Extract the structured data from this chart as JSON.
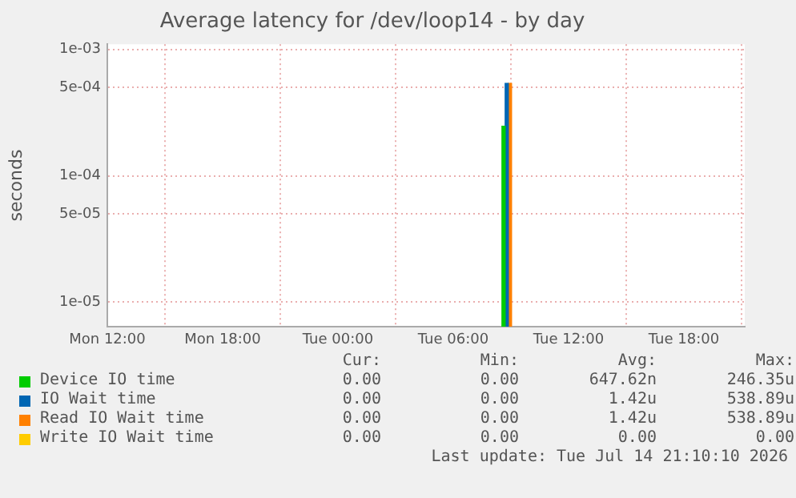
{
  "chart_data": {
    "type": "bar",
    "title": "Average latency for /dev/loop14 - by day",
    "ylabel": "seconds",
    "log": "y",
    "grid": true,
    "legend": "bottom",
    "xlim": [
      "2026-07-13T12:00",
      "2026-07-14T21:10"
    ],
    "xticks": [
      {
        "value": "2026-07-13T12:00",
        "label": "Mon 12:00"
      },
      {
        "value": "2026-07-13T18:00",
        "label": "Mon 18:00"
      },
      {
        "value": "2026-07-14T00:00",
        "label": "Tue 00:00"
      },
      {
        "value": "2026-07-14T06:00",
        "label": "Tue 06:00"
      },
      {
        "value": "2026-07-14T12:00",
        "label": "Tue 12:00"
      },
      {
        "value": "2026-07-14T18:00",
        "label": "Tue 18:00"
      }
    ],
    "ylim": [
      6.4e-06,
      0.0011
    ],
    "yticks": [
      {
        "value": 1e-05,
        "label": "1e-05"
      },
      {
        "value": 5e-05,
        "label": "5e-05"
      },
      {
        "value": 0.0001,
        "label": "1e-04"
      },
      {
        "value": 0.0005,
        "label": "5e-04"
      },
      {
        "value": 0.001,
        "label": "1e-03"
      }
    ],
    "series": [
      {
        "name": "Device IO time",
        "color": "#00cc00",
        "x": [
          "2026-07-14T08:52"
        ],
        "values": [
          0.00024635
        ]
      },
      {
        "name": "IO Wait time",
        "color": "#0066b3",
        "x": [
          "2026-07-14T08:52"
        ],
        "values": [
          0.00053889
        ]
      },
      {
        "name": "Read IO Wait time",
        "color": "#ff8000",
        "x": [
          "2026-07-14T08:52"
        ],
        "values": [
          0.00053889
        ]
      },
      {
        "name": "Write IO Wait time",
        "color": "#ffcc00"
      }
    ],
    "annotations": [
      "Cur:",
      "Min:",
      "Avg:",
      "Max:",
      "0.00",
      "0.00",
      "647.62n",
      "246.35u",
      "0.00",
      "0.00",
      "1.42u",
      "538.89u",
      "0.00",
      "0.00",
      "1.42u",
      "538.89u",
      "0.00",
      "0.00",
      "0.00",
      "0.00",
      "Last update: Tue Jul 14 21:10:10 2026"
    ]
  }
}
